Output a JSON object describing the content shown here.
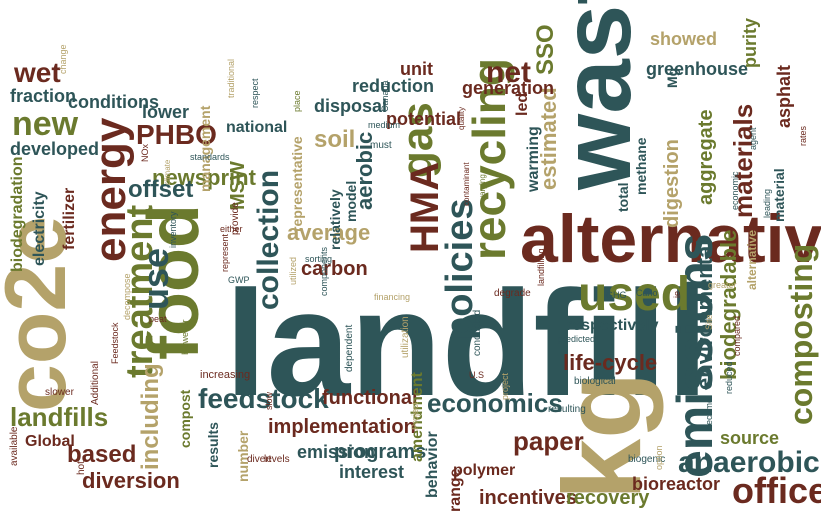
{
  "palette": {
    "teal": "#2e5558",
    "maroon": "#6b2a1f",
    "olive": "#6b7a2e",
    "tan": "#b4a26a",
    "rust": "#7a3b21"
  },
  "words": [
    {
      "id": "landfill",
      "text": "landfill",
      "color": "#2e5558"
    },
    {
      "id": "waste",
      "text": "waste",
      "color": "#2e5558"
    },
    {
      "id": "alternatives",
      "text": "alternatives",
      "color": "#6b2a1f"
    },
    {
      "id": "co2e",
      "text": "co2e",
      "color": "#b4a26a"
    },
    {
      "id": "kg",
      "text": "kg",
      "color": "#b4a26a"
    },
    {
      "id": "food",
      "text": "food",
      "color": "#6b7a2e"
    },
    {
      "id": "energy",
      "text": "energy",
      "color": "#6b2a1f"
    },
    {
      "id": "emissions",
      "text": "emissions",
      "color": "#2e5558"
    },
    {
      "id": "recycling",
      "text": "recycling",
      "color": "#6b7a2e"
    },
    {
      "id": "treatment",
      "text": "treatment",
      "color": "#6b7a2e"
    },
    {
      "id": "used",
      "text": "used",
      "color": "#6b7a2e"
    },
    {
      "id": "policies",
      "text": "policies",
      "color": "#2e5558"
    },
    {
      "id": "gas",
      "text": "gas",
      "color": "#6b7a2e"
    },
    {
      "id": "HMA",
      "text": "HMA",
      "color": "#6b2a1f"
    },
    {
      "id": "collection",
      "text": "collection",
      "color": "#2e5558"
    },
    {
      "id": "use",
      "text": "use",
      "color": "#2e5558"
    },
    {
      "id": "composting",
      "text": "composting",
      "color": "#6b7a2e"
    },
    {
      "id": "anaerobic",
      "text": "anaerobic",
      "color": "#2e5558"
    },
    {
      "id": "economics",
      "text": "economics",
      "color": "#2e5558"
    },
    {
      "id": "office",
      "text": "office",
      "color": "#6b2a1f"
    },
    {
      "id": "feedstock",
      "text": "feedstock",
      "color": "#2e5558"
    },
    {
      "id": "materials",
      "text": "materials",
      "color": "#6b2a1f"
    },
    {
      "id": "biodegradable",
      "text": "biodegradable",
      "color": "#6b7a2e"
    },
    {
      "id": "environmental",
      "text": "environmental",
      "color": "#2e5558"
    },
    {
      "id": "digestion",
      "text": "digestion",
      "color": "#b4a26a"
    },
    {
      "id": "aggregate",
      "text": "aggregate",
      "color": "#6b7a2e"
    },
    {
      "id": "newsprint",
      "text": "newsprint",
      "color": "#6b7a2e"
    },
    {
      "id": "offset",
      "text": "offset",
      "color": "#2e5558"
    },
    {
      "id": "PHBO",
      "text": "PHBO",
      "color": "#6b2a1f"
    },
    {
      "id": "new",
      "text": "new",
      "color": "#6b7a2e"
    },
    {
      "id": "wet",
      "text": "wet",
      "color": "#6b2a1f"
    },
    {
      "id": "net",
      "text": "net",
      "color": "#6b2a1f"
    },
    {
      "id": "SSO",
      "text": "SSO",
      "color": "#6b7a2e"
    },
    {
      "id": "landfills",
      "text": "landfills",
      "color": "#6b7a2e"
    },
    {
      "id": "including",
      "text": "including",
      "color": "#b4a26a"
    },
    {
      "id": "average",
      "text": "average",
      "color": "#b4a26a"
    },
    {
      "id": "carbon",
      "text": "carbon",
      "color": "#6b2a1f"
    },
    {
      "id": "paper",
      "text": "paper",
      "color": "#6b2a1f"
    },
    {
      "id": "life-cycle",
      "text": "life-cycle",
      "color": "#6b2a1f"
    },
    {
      "id": "soil",
      "text": "soil",
      "color": "#b4a26a"
    },
    {
      "id": "aerobic",
      "text": "aerobic",
      "color": "#2e5558"
    },
    {
      "id": "estimated",
      "text": "estimated",
      "color": "#b4a26a"
    },
    {
      "id": "warming",
      "text": "warming",
      "color": "#2e5558"
    },
    {
      "id": "diversion",
      "text": "diversion",
      "color": "#6b2a1f"
    },
    {
      "id": "based",
      "text": "based",
      "color": "#6b2a1f"
    },
    {
      "id": "programs",
      "text": "programs",
      "color": "#2e5558"
    },
    {
      "id": "implementation",
      "text": "implementation",
      "color": "#6b2a1f"
    },
    {
      "id": "functional",
      "text": "functional",
      "color": "#6b2a1f"
    },
    {
      "id": "emission",
      "text": "emission",
      "color": "#2e5558"
    },
    {
      "id": "interest",
      "text": "interest",
      "color": "#2e5558"
    },
    {
      "id": "incentives",
      "text": "incentives",
      "color": "#6b2a1f"
    },
    {
      "id": "recovery",
      "text": "recovery",
      "color": "#6b7a2e"
    },
    {
      "id": "bioreactor",
      "text": "bioreactor",
      "color": "#6b2a1f"
    },
    {
      "id": "source",
      "text": "source",
      "color": "#6b7a2e"
    },
    {
      "id": "respectively",
      "text": "respectively",
      "color": "#2e5558"
    },
    {
      "id": "greenhouse",
      "text": "greenhouse",
      "color": "#2e5558"
    },
    {
      "id": "showed",
      "text": "showed",
      "color": "#b4a26a"
    },
    {
      "id": "purity",
      "text": "purity",
      "color": "#6b7a2e"
    },
    {
      "id": "asphalt",
      "text": "asphalt",
      "color": "#6b2a1f"
    },
    {
      "id": "generation",
      "text": "generation",
      "color": "#6b2a1f"
    },
    {
      "id": "reduction",
      "text": "reduction",
      "color": "#2e5558"
    },
    {
      "id": "unit",
      "text": "unit",
      "color": "#6b2a1f"
    },
    {
      "id": "potential",
      "text": "potential",
      "color": "#6b2a1f"
    },
    {
      "id": "disposal",
      "text": "disposal",
      "color": "#2e5558"
    },
    {
      "id": "led",
      "text": "led",
      "color": "#6b2a1f"
    },
    {
      "id": "national",
      "text": "national",
      "color": "#2e5558"
    },
    {
      "id": "management",
      "text": "management",
      "color": "#b4a26a"
    },
    {
      "id": "lower",
      "text": "lower",
      "color": "#2e5558"
    },
    {
      "id": "conditions",
      "text": "conditions",
      "color": "#2e5558"
    },
    {
      "id": "fraction",
      "text": "fraction",
      "color": "#2e5558"
    },
    {
      "id": "developed",
      "text": "developed",
      "color": "#2e5558"
    },
    {
      "id": "electricity",
      "text": "electricity",
      "color": "#2e5558"
    },
    {
      "id": "fertilizer",
      "text": "fertilizer",
      "color": "#6b2a1f"
    },
    {
      "id": "biodegradation",
      "text": "biodegradation",
      "color": "#6b7a2e"
    },
    {
      "id": "Global",
      "text": "Global",
      "color": "#6b2a1f"
    },
    {
      "id": "MSW",
      "text": "MSW",
      "color": "#6b7a2e"
    },
    {
      "id": "compost",
      "text": "compost",
      "color": "#6b7a2e"
    },
    {
      "id": "results",
      "text": "results",
      "color": "#2e5558"
    },
    {
      "id": "number",
      "text": "number",
      "color": "#b4a26a"
    },
    {
      "id": "behavior",
      "text": "behavior",
      "color": "#2e5558"
    },
    {
      "id": "range",
      "text": "range",
      "color": "#6b2a1f"
    },
    {
      "id": "polymer",
      "text": "polymer",
      "color": "#6b2a1f"
    },
    {
      "id": "amendment",
      "text": "amendment",
      "color": "#6b7a2e"
    },
    {
      "id": "relatively",
      "text": "relatively",
      "color": "#2e5558"
    },
    {
      "id": "model",
      "text": "model",
      "color": "#2e5558"
    },
    {
      "id": "representative",
      "text": "representative",
      "color": "#b4a26a"
    },
    {
      "id": "total",
      "text": "total",
      "color": "#2e5558"
    },
    {
      "id": "methane",
      "text": "methane",
      "color": "#2e5558"
    },
    {
      "id": "alternative",
      "text": "alternative",
      "color": "#b4a26a"
    },
    {
      "id": "Mg",
      "text": "Mg",
      "color": "#2e5558"
    },
    {
      "id": "material",
      "text": "material",
      "color": "#2e5558"
    },
    {
      "id": "hot",
      "text": "hot",
      "color": "#6b2a1f"
    },
    {
      "id": "available",
      "text": "available",
      "color": "#6b2a1f"
    },
    {
      "id": "slower",
      "text": "slower",
      "color": "#6b2a1f"
    },
    {
      "id": "Additional",
      "text": "Additional",
      "color": "#6b2a1f"
    },
    {
      "id": "Feedstock",
      "text": "Feedstock",
      "color": "#6b2a1f"
    },
    {
      "id": "decompose",
      "text": "decompose",
      "color": "#b4a26a"
    },
    {
      "id": "peat",
      "text": "peat",
      "color": "#6b2a1f"
    },
    {
      "id": "increasing",
      "text": "increasing",
      "color": "#6b2a1f"
    },
    {
      "id": "However",
      "text": "However",
      "color": "#6b7a2e"
    },
    {
      "id": "divert",
      "text": "divert",
      "color": "#6b2a1f"
    },
    {
      "id": "levels",
      "text": "levels",
      "color": "#6b2a1f"
    },
    {
      "id": "slow",
      "text": "slow",
      "color": "#6b2a1f"
    },
    {
      "id": "Project",
      "text": "Project",
      "color": "#b4a26a"
    },
    {
      "id": "dependent",
      "text": "dependent",
      "color": "#2e5558"
    },
    {
      "id": "utilization",
      "text": "utilization",
      "color": "#b4a26a"
    },
    {
      "id": "US",
      "text": "U.S",
      "color": "#6b2a1f"
    },
    {
      "id": "conducted",
      "text": "conducted",
      "color": "#2e5558"
    },
    {
      "id": "project",
      "text": "project",
      "color": "#b4a26a"
    },
    {
      "id": "resulting",
      "text": "resulting",
      "color": "#2e5558"
    },
    {
      "id": "biogenic",
      "text": "biogenic",
      "color": "#2e5558"
    },
    {
      "id": "option",
      "text": "option",
      "color": "#b4a26a"
    },
    {
      "id": "biological",
      "text": "biological",
      "color": "#2e5558"
    },
    {
      "id": "predicted",
      "text": "predicted",
      "color": "#2e5558"
    },
    {
      "id": "become",
      "text": "become",
      "color": "#2e5558"
    },
    {
      "id": "reduced",
      "text": "reduced",
      "color": "#2e5558"
    },
    {
      "id": "compared",
      "text": "compared",
      "color": "#6b2a1f"
    },
    {
      "id": "Site",
      "text": "Site",
      "color": "#b4a26a"
    },
    {
      "id": "greater",
      "text": "greater",
      "color": "#b4a26a"
    },
    {
      "id": "ie",
      "text": "ie",
      "color": "#6b2a1f"
    },
    {
      "id": "Carlo",
      "text": "Carlo",
      "color": "#2e5558"
    },
    {
      "id": "GHG",
      "text": "GHG",
      "color": "#2e5558"
    },
    {
      "id": "landfilling",
      "text": "landfilling",
      "color": "#6b2a1f"
    },
    {
      "id": "degrade",
      "text": "degrade",
      "color": "#6b2a1f"
    },
    {
      "id": "contaminant",
      "text": "contaminant",
      "color": "#6b2a1f"
    },
    {
      "id": "varying",
      "text": "varying",
      "color": "#6b7a2e"
    },
    {
      "id": "quality",
      "text": "quality",
      "color": "#6b2a1f"
    },
    {
      "id": "financing",
      "text": "financing",
      "color": "#b4a26a"
    },
    {
      "id": "must",
      "text": "must",
      "color": "#2e5558"
    },
    {
      "id": "Canada",
      "text": "Canada",
      "color": "#2e5558"
    },
    {
      "id": "medium",
      "text": "medium",
      "color": "#2e5558"
    },
    {
      "id": "components",
      "text": "components",
      "color": "#2e5558"
    },
    {
      "id": "sorting",
      "text": "sorting",
      "color": "#2e5558"
    },
    {
      "id": "utilized",
      "text": "utilized",
      "color": "#b4a26a"
    },
    {
      "id": "GWP",
      "text": "GWP",
      "color": "#2e5558"
    },
    {
      "id": "represent",
      "text": "represent",
      "color": "#6b2a1f"
    },
    {
      "id": "either",
      "text": "either",
      "color": "#6b2a1f"
    },
    {
      "id": "provide",
      "text": "provide",
      "color": "#6b2a1f"
    },
    {
      "id": "standards",
      "text": "standards",
      "color": "#2e5558"
    },
    {
      "id": "NOx",
      "text": "NOx",
      "color": "#6b2a1f"
    },
    {
      "id": "climate",
      "text": "climate",
      "color": "#b4a26a"
    },
    {
      "id": "inventory",
      "text": "inventory",
      "color": "#2e5558"
    },
    {
      "id": "traditional",
      "text": "traditional",
      "color": "#b4a26a"
    },
    {
      "id": "respect",
      "text": "respect",
      "color": "#2e5558"
    },
    {
      "id": "place",
      "text": "place",
      "color": "#6b7a2e"
    },
    {
      "id": "change",
      "text": "change",
      "color": "#b4a26a"
    },
    {
      "id": "agent",
      "text": "agent",
      "color": "#2e5558"
    },
    {
      "id": "economic",
      "text": "economic",
      "color": "#2e5558"
    },
    {
      "id": "leading",
      "text": "leading",
      "color": "#2e5558"
    },
    {
      "id": "rates",
      "text": "rates",
      "color": "#6b2a1f"
    }
  ]
}
